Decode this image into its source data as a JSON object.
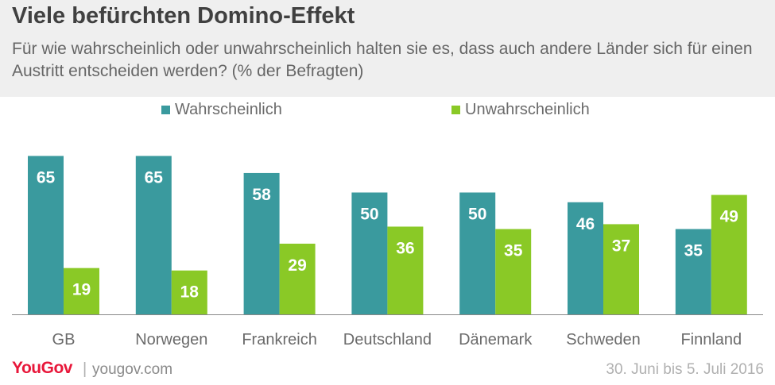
{
  "header": {
    "title": "Viele befürchten Domino-Effekt",
    "subtitle": "Für wie wahrscheinlich oder unwahrscheinlich halten sie es, dass auch andere Länder sich für einen Austritt entscheiden werden? (% der Befragten)"
  },
  "footer": {
    "logo": "YouGov",
    "separator": "|",
    "url": "yougov.com",
    "date": "30. Juni bis 5. Juli 2016"
  },
  "colors": {
    "wahrscheinlich": "#3a9a9e",
    "unwahrscheinlich": "#8ac926",
    "header_bg": "#efefef",
    "logo": "#e8173a"
  },
  "chart_data": {
    "type": "bar",
    "categories": [
      "GB",
      "Norwegen",
      "Frankreich",
      "Deutschland",
      "Dänemark",
      "Schweden",
      "Finnland"
    ],
    "series": [
      {
        "name": "Wahrscheinlich",
        "values": [
          65,
          65,
          58,
          50,
          50,
          46,
          35
        ]
      },
      {
        "name": "Unwahrscheinlich",
        "values": [
          19,
          18,
          29,
          36,
          35,
          37,
          49
        ]
      }
    ],
    "ylim": [
      0,
      70
    ],
    "grid": false,
    "legend_position": "top-center",
    "data_labels": true
  }
}
